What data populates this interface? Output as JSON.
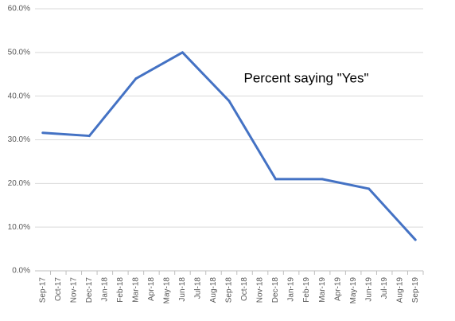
{
  "chart_data": {
    "type": "line",
    "annotation": "Percent saying \"Yes\"",
    "categories": [
      "Sep-17",
      "Oct-17",
      "Nov-17",
      "Dec-17",
      "Jan-18",
      "Feb-18",
      "Mar-18",
      "Apr-18",
      "May-18",
      "Jun-18",
      "Jul-18",
      "Aug-18",
      "Sep-18",
      "Oct-18",
      "Nov-18",
      "Dec-18",
      "Jan-19",
      "Feb-19",
      "Mar-19",
      "Apr-19",
      "May-19",
      "Jun-19",
      "Jul-19",
      "Aug-19",
      "Sep-19"
    ],
    "series": [
      {
        "color": "#4472c4",
        "connect_gaps": true,
        "values": [
          31.6,
          null,
          null,
          30.9,
          null,
          null,
          44,
          null,
          null,
          50,
          null,
          null,
          38.9,
          null,
          null,
          21,
          null,
          null,
          21,
          null,
          null,
          18.8,
          null,
          null,
          7.1
        ]
      }
    ],
    "ylim": [
      0,
      60
    ],
    "yticks": [
      {
        "value": 0,
        "label": "0.0%"
      },
      {
        "value": 10,
        "label": "10.0%"
      },
      {
        "value": 20,
        "label": "20.0%"
      },
      {
        "value": 30,
        "label": "30.0%"
      },
      {
        "value": 40,
        "label": "40.0%"
      },
      {
        "value": 50,
        "label": "50.0%"
      },
      {
        "value": 60,
        "label": "60.0%"
      }
    ],
    "grid": true
  }
}
